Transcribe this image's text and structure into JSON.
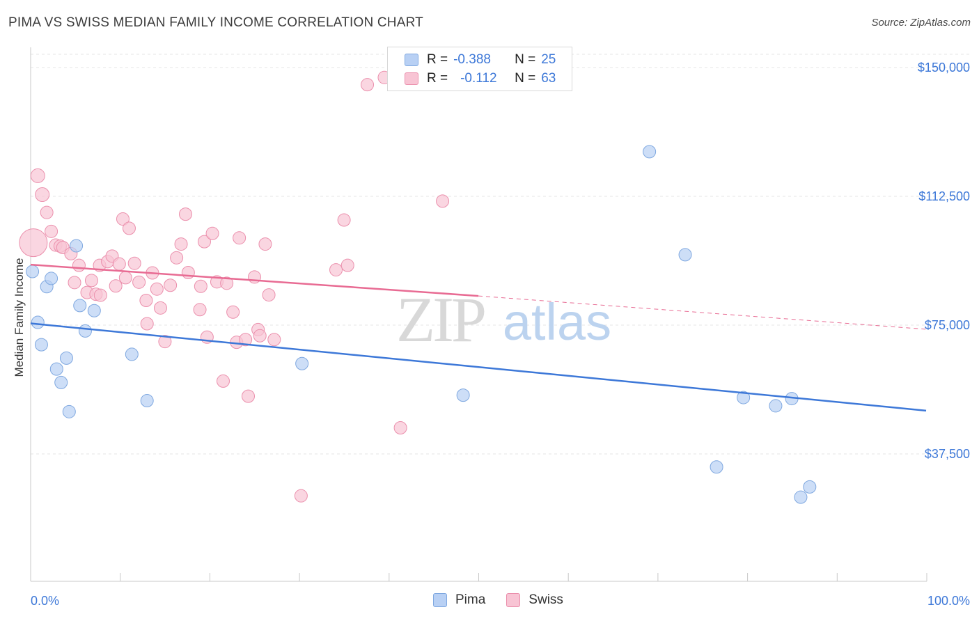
{
  "title": "PIMA VS SWISS MEDIAN FAMILY INCOME CORRELATION CHART",
  "source": "Source: ZipAtlas.com",
  "watermark": {
    "zip": "ZIP",
    "atlas": "atlas"
  },
  "legend": {
    "r_label": "R =",
    "n_label": "N =",
    "rows": [
      {
        "name": "Pima",
        "r": "-0.388",
        "n": "25",
        "fill": "#b8d0f4",
        "stroke": "#7fa8e0"
      },
      {
        "name": "Swiss",
        "r": "-0.112",
        "n": "63",
        "fill": "#f8c4d4",
        "stroke": "#eb8fac"
      }
    ]
  },
  "bottom_legend": [
    {
      "name": "Pima",
      "fill": "#b8d0f4",
      "stroke": "#7fa8e0"
    },
    {
      "name": "Swiss",
      "fill": "#f8c4d4",
      "stroke": "#eb8fac"
    }
  ],
  "chart_data": {
    "type": "scatter",
    "title": "PIMA VS SWISS MEDIAN FAMILY INCOME CORRELATION CHART",
    "xlabel": "",
    "ylabel": "Median Family Income",
    "xlim": [
      0,
      100
    ],
    "ylim": [
      0,
      155000
    ],
    "x_tick_labels": [
      "0.0%",
      "100.0%"
    ],
    "y_ticks": [
      {
        "value": 37500,
        "label": "$37,500"
      },
      {
        "value": 75000,
        "label": "$75,000"
      },
      {
        "value": 112500,
        "label": "$112,500"
      },
      {
        "value": 150000,
        "label": "$150,000"
      }
    ],
    "grid": true,
    "colors": {
      "pima": "#3d78d8",
      "swiss": "#e86b93",
      "pima_fill": "#b8d0f4",
      "swiss_fill": "#f8c4d4"
    },
    "series": [
      {
        "name": "Pima",
        "points": [
          [
            0.2,
            90600
          ],
          [
            0.8,
            75800
          ],
          [
            1.2,
            69300
          ],
          [
            1.8,
            86200
          ],
          [
            2.3,
            88600
          ],
          [
            2.9,
            62200
          ],
          [
            3.4,
            58300
          ],
          [
            4.0,
            65400
          ],
          [
            4.3,
            49800
          ],
          [
            5.1,
            98100
          ],
          [
            5.5,
            80700
          ],
          [
            6.1,
            73300
          ],
          [
            7.1,
            79200
          ],
          [
            11.3,
            66500
          ],
          [
            13.0,
            53000
          ],
          [
            30.3,
            63800
          ],
          [
            48.3,
            54600
          ],
          [
            69.1,
            125500
          ],
          [
            73.1,
            95500
          ],
          [
            76.6,
            33700
          ],
          [
            79.6,
            53900
          ],
          [
            83.2,
            51500
          ],
          [
            85.0,
            53600
          ],
          [
            86.0,
            24900
          ],
          [
            87.0,
            27900
          ]
        ],
        "trend": {
          "x": [
            0,
            100
          ],
          "y": [
            75500,
            50100
          ],
          "style": "solid"
        }
      },
      {
        "name": "Swiss",
        "points": [
          [
            0.3,
            99000
          ],
          [
            0.8,
            118500
          ],
          [
            1.3,
            113000
          ],
          [
            1.8,
            107800
          ],
          [
            2.3,
            102300
          ],
          [
            2.8,
            98300
          ],
          [
            3.3,
            98000
          ],
          [
            3.6,
            97600
          ],
          [
            4.5,
            95800
          ],
          [
            4.9,
            87400
          ],
          [
            5.4,
            92400
          ],
          [
            6.3,
            84500
          ],
          [
            6.8,
            88000
          ],
          [
            7.3,
            84000
          ],
          [
            7.8,
            83700
          ],
          [
            7.7,
            92400
          ],
          [
            8.6,
            93500
          ],
          [
            9.1,
            95100
          ],
          [
            9.5,
            86400
          ],
          [
            9.9,
            92800
          ],
          [
            10.3,
            105900
          ],
          [
            10.6,
            88800
          ],
          [
            11.0,
            103200
          ],
          [
            11.6,
            93000
          ],
          [
            12.1,
            87500
          ],
          [
            13.0,
            75400
          ],
          [
            12.9,
            82200
          ],
          [
            13.6,
            90200
          ],
          [
            14.1,
            85500
          ],
          [
            14.5,
            80000
          ],
          [
            15.0,
            70200
          ],
          [
            15.6,
            86600
          ],
          [
            16.3,
            94600
          ],
          [
            16.8,
            98600
          ],
          [
            17.3,
            107300
          ],
          [
            17.6,
            90300
          ],
          [
            18.9,
            79500
          ],
          [
            19.0,
            86300
          ],
          [
            19.4,
            99300
          ],
          [
            19.7,
            71500
          ],
          [
            20.3,
            101700
          ],
          [
            20.8,
            87600
          ],
          [
            21.5,
            58700
          ],
          [
            21.9,
            87200
          ],
          [
            22.6,
            78800
          ],
          [
            23.0,
            70000
          ],
          [
            23.3,
            100400
          ],
          [
            24.0,
            70800
          ],
          [
            24.3,
            54300
          ],
          [
            25.0,
            89000
          ],
          [
            25.4,
            73700
          ],
          [
            25.6,
            71900
          ],
          [
            26.2,
            98600
          ],
          [
            26.6,
            83800
          ],
          [
            27.2,
            70800
          ],
          [
            30.2,
            25300
          ],
          [
            34.1,
            91100
          ],
          [
            35.0,
            105600
          ],
          [
            35.4,
            92400
          ],
          [
            37.6,
            145000
          ],
          [
            39.5,
            147100
          ],
          [
            41.3,
            45100
          ],
          [
            46.0,
            111100
          ]
        ],
        "trend_solid": {
          "x": [
            0,
            50
          ],
          "y": [
            92600,
            83500
          ],
          "style": "solid"
        },
        "trend_dashed": {
          "x": [
            50,
            100
          ],
          "y": [
            83500,
            73800
          ],
          "style": "dashed"
        }
      }
    ]
  }
}
